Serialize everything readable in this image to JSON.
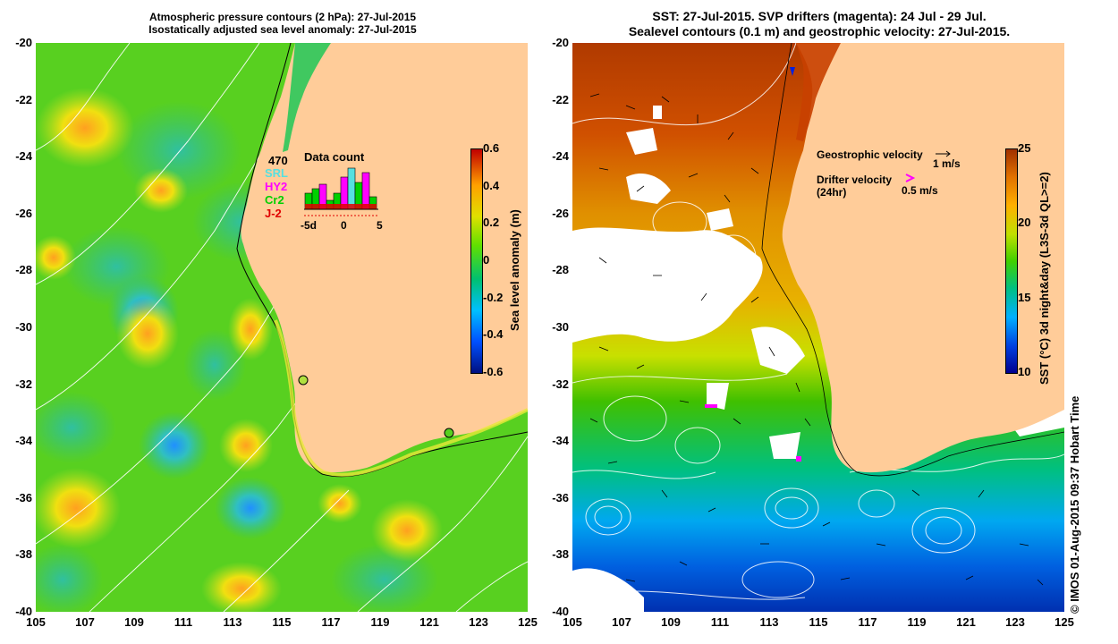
{
  "left_panel": {
    "title_line1": "Atmospheric pressure contours (2 hPa): 27-Jul-2015",
    "title_line2": "Isostatically adjusted sea level anomaly: 27-Jul-2015",
    "colorbar": {
      "label": "Sea level anomaly (m)",
      "ticks": [
        "0.6",
        "0.4",
        "0.2",
        "0",
        "-0.2",
        "-0.4",
        "-0.6"
      ],
      "colors": [
        "#001080",
        "#0050ff",
        "#00c0ff",
        "#00c070",
        "#60e000",
        "#e0e000",
        "#ffa000",
        "#c00000"
      ]
    },
    "data_count": {
      "title": "Data count",
      "total": "470",
      "legend": [
        {
          "label": "SRL",
          "color": "#55e0e0"
        },
        {
          "label": "HY2",
          "color": "#ff00ff"
        },
        {
          "label": "Cr2",
          "color": "#00d000"
        },
        {
          "label": "J-2",
          "color": "#e00000"
        }
      ],
      "x_ticks": [
        "-5d",
        "0",
        "5"
      ]
    }
  },
  "right_panel": {
    "title_line1": "SST: 27-Jul-2015. SVP drifters (magenta): 24 Jul - 29 Jul.",
    "title_line2": "Sealevel contours (0.1 m) and geostrophic velocity: 27-Jul-2015.",
    "colorbar": {
      "label": "SST (°C) 3d night&day (L3S-3d QL>=2)",
      "ticks": [
        "25",
        "20",
        "15",
        "10"
      ],
      "colors": [
        "#000090",
        "#0040e0",
        "#00b0ff",
        "#00c080",
        "#40d000",
        "#c0e000",
        "#ffb000",
        "#e07000",
        "#a03000"
      ]
    },
    "velocity_legend": {
      "geostrophic_label": "Geostrophic velocity",
      "geostrophic_scale": "1 m/s",
      "drifter_label": "Drifter velocity",
      "drifter_sub": "(24hr)",
      "drifter_scale": "0.5 m/s"
    }
  },
  "axes": {
    "x_ticks": [
      "105",
      "107",
      "109",
      "111",
      "113",
      "115",
      "117",
      "119",
      "121",
      "123",
      "125"
    ],
    "y_ticks": [
      "-20",
      "-22",
      "-24",
      "-26",
      "-28",
      "-30",
      "-32",
      "-34",
      "-36",
      "-38",
      "-40"
    ]
  },
  "credit": "© IMOS 01-Aug-2015 09:37 Hobart Time"
}
